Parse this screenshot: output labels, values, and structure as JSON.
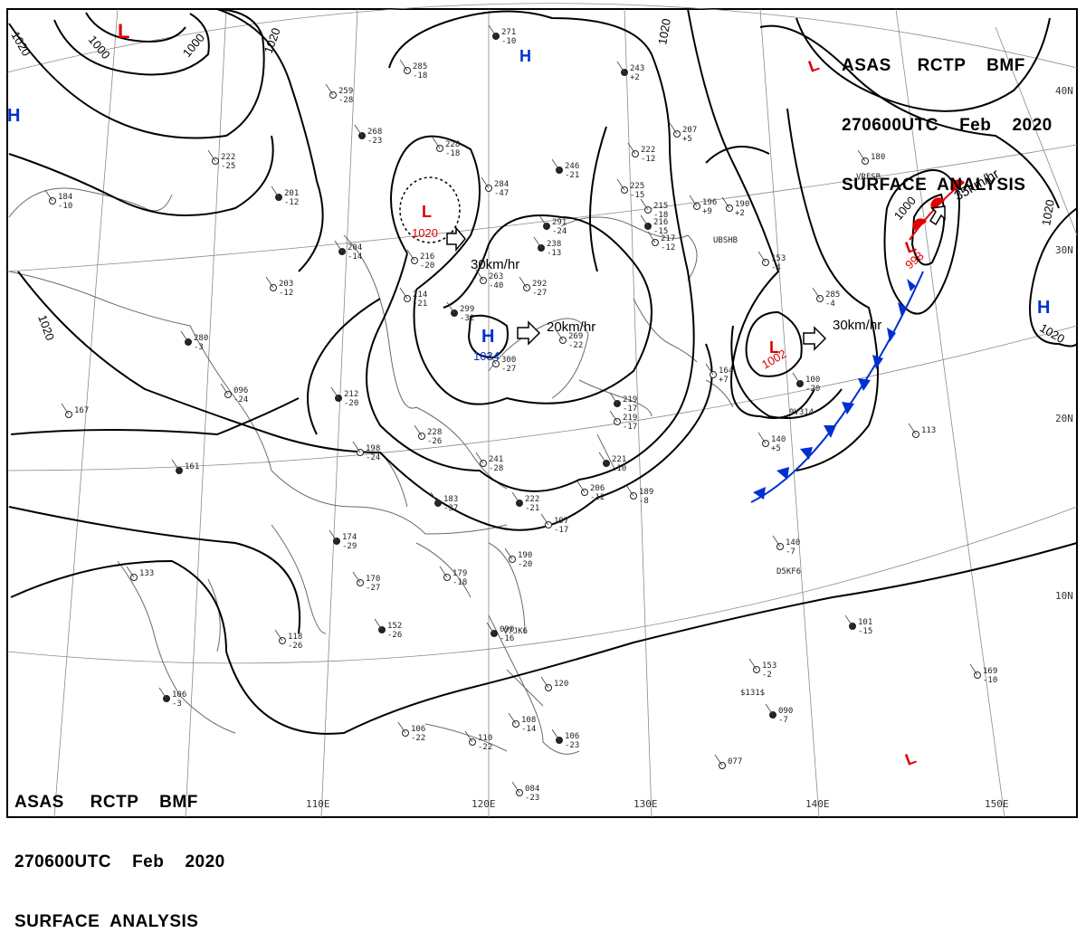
{
  "header": {
    "line1": "ASAS     RCTP    BMF",
    "line2": "270600UTC    Feb    2020",
    "line3": "SURFACE  ANALYSIS"
  },
  "longitude_labels": [
    "110E",
    "120E",
    "130E",
    "140E",
    "150E"
  ],
  "latitude_labels": [
    "40N",
    "30N",
    "20N",
    "10N"
  ],
  "isobar_labels": [
    "1020",
    "1000",
    "1000",
    "1020",
    "1020",
    "1000",
    "1020",
    "1020"
  ],
  "pressure_centers": [
    {
      "type": "L",
      "value": "",
      "color": "#e00000"
    },
    {
      "type": "L",
      "value": "1020",
      "color": "#e00000"
    },
    {
      "type": "H",
      "value": "1034",
      "color": "#0030d0"
    },
    {
      "type": "L",
      "value": "1002",
      "color": "#e00000"
    },
    {
      "type": "L",
      "value": "998",
      "color": "#e00000"
    },
    {
      "type": "H",
      "value": "",
      "color": "#0030d0"
    },
    {
      "type": "H",
      "value": "",
      "color": "#0030d0"
    },
    {
      "type": "H",
      "value": "",
      "color": "#0030d0"
    },
    {
      "type": "L",
      "value": "",
      "color": "#e00000"
    },
    {
      "type": "L",
      "value": "",
      "color": "#e00000"
    }
  ],
  "movements": [
    "30km/hr",
    "20km/hr",
    "30km/hr",
    "35km/hr"
  ],
  "stations": [
    [
      "271",
      "-10"
    ],
    [
      "285",
      "-18"
    ],
    [
      "259",
      "-28"
    ],
    [
      "268",
      "-23"
    ],
    [
      "228",
      "-18"
    ],
    [
      "284",
      "-47"
    ],
    [
      "246",
      "-21"
    ],
    [
      "225",
      "-15"
    ],
    [
      "222",
      "-12"
    ],
    [
      "243",
      "+2"
    ],
    [
      "207",
      "+5"
    ],
    [
      "196",
      "+9"
    ],
    [
      "216",
      "-15"
    ],
    [
      "190",
      "+2"
    ],
    [
      "217",
      "-12"
    ],
    [
      "204",
      "-14"
    ],
    [
      "216",
      "-20"
    ],
    [
      "263",
      "-40"
    ],
    [
      "291",
      "-24"
    ],
    [
      "292",
      "-27"
    ],
    [
      "214",
      "-21"
    ],
    [
      "299",
      "-32"
    ],
    [
      "300",
      "-27"
    ],
    [
      "269",
      "-22"
    ],
    [
      "280",
      "-3"
    ],
    [
      "203",
      "-12"
    ],
    [
      "096",
      "-24"
    ],
    [
      "212",
      "-20"
    ],
    [
      "228",
      "-26"
    ],
    [
      "198",
      "-24"
    ],
    [
      "183",
      "-37"
    ],
    [
      "241",
      "-28"
    ],
    [
      "219",
      "-17"
    ],
    [
      "221",
      "-10"
    ],
    [
      "206",
      "-12"
    ],
    [
      "189",
      "-8"
    ],
    [
      "222",
      "-21"
    ],
    [
      "197",
      "-17"
    ],
    [
      "190",
      "-20"
    ],
    [
      "174",
      "-29"
    ],
    [
      "170",
      "-27"
    ],
    [
      "179",
      "-18"
    ],
    [
      "152",
      "-26"
    ],
    [
      "133",
      ""
    ],
    [
      "118",
      "-26"
    ],
    [
      "106",
      "-3"
    ],
    [
      "106",
      "-22"
    ],
    [
      "110",
      "-22"
    ],
    [
      "090",
      "-16"
    ],
    [
      "120",
      ""
    ],
    [
      "108",
      "-14"
    ],
    [
      "106",
      "-23"
    ],
    [
      "084",
      "-23"
    ],
    [
      "167",
      ""
    ],
    [
      "161",
      ""
    ],
    [
      "164",
      "+7"
    ],
    [
      "140",
      "+5"
    ],
    [
      "100",
      "-20"
    ],
    [
      "113",
      ""
    ],
    [
      "140",
      "-7"
    ],
    [
      "101",
      "-15"
    ],
    [
      "169",
      "-10"
    ],
    [
      "153",
      "-2"
    ],
    [
      "090",
      "-7"
    ],
    [
      "077",
      ""
    ],
    [
      "180",
      ""
    ],
    [
      "238",
      "-13"
    ],
    [
      "215",
      "-18"
    ],
    [
      "184",
      "-10"
    ],
    [
      "201",
      "-12"
    ],
    [
      "153",
      "-4"
    ],
    [
      "222",
      "-25"
    ],
    [
      "219",
      "-17"
    ],
    [
      "285",
      "-4"
    ]
  ],
  "ship_ids": [
    "9V314",
    "D5KF6",
    "V7JK6",
    "UBSHB",
    "VRFSB",
    "$131$"
  ],
  "colors": {
    "low": "#e00000",
    "high": "#0030d0",
    "cold_front": "#0030d0",
    "isobar": "#000000",
    "grid": "#8a8a8a",
    "coast": "#6a6a6a"
  }
}
